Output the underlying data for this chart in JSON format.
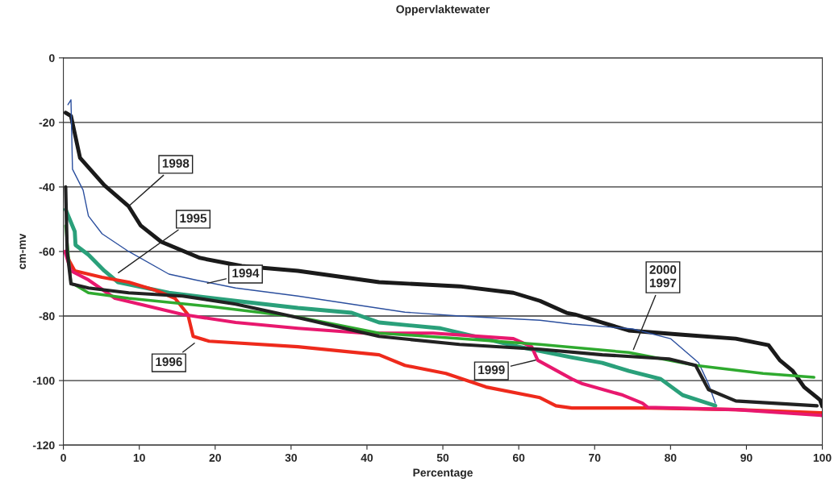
{
  "chart_data": {
    "type": "line",
    "title": "Oppervlaktewater",
    "xlabel": "Percentage",
    "ylabel": "cm-mv",
    "xlim": [
      0,
      100
    ],
    "xticks": [
      0,
      10,
      20,
      30,
      40,
      50,
      60,
      70,
      80,
      90,
      100
    ],
    "ylim": [
      -120,
      0
    ],
    "yticks": [
      -120,
      -100,
      -80,
      -60,
      -40,
      -20,
      0
    ],
    "grid": "y",
    "marker": "none",
    "line_style": "solid",
    "series": [
      {
        "color": "#1a1a1a",
        "x": [
          0.3,
          1,
          2.2,
          5.4,
          8.6,
          10.2,
          12.9,
          18,
          23.5,
          30.9,
          41.6,
          52.2,
          59.3,
          62.8,
          66.3,
          67.4,
          74.5,
          81.6,
          88.6,
          92.9,
          94.4,
          96.1,
          97.6,
          99.7,
          100
        ],
        "values": [
          -17,
          -18,
          -31,
          -39.5,
          -46,
          -52,
          -57,
          -62,
          -64.5,
          -66,
          -69.5,
          -70.8,
          -72.8,
          -75.3,
          -79,
          -79.5,
          -84.5,
          -85.8,
          -87,
          -89,
          -93.7,
          -97,
          -102,
          -106,
          -108
        ]
      },
      {
        "color": "#2b4f9e",
        "x": [
          0.6,
          1,
          1.2,
          2.6,
          3.3,
          5.1,
          8.6,
          13.9,
          17.4,
          22.7,
          30.9,
          45,
          52.2,
          62.8,
          67,
          75,
          80,
          83.7,
          85,
          85.9
        ],
        "values": [
          -14.5,
          -13,
          -34.5,
          -41,
          -49,
          -54.5,
          -60,
          -67,
          -68.8,
          -71.3,
          -73.8,
          -78.8,
          -80,
          -81.3,
          -82.5,
          -84,
          -87,
          -94.5,
          -101,
          -107
        ]
      },
      {
        "color": "#2aa07a",
        "x": [
          0.3,
          1.5,
          1.6,
          3.3,
          5.4,
          7.2,
          13.9,
          22.7,
          30.9,
          38,
          41.6,
          49.7,
          60,
          67,
          71,
          74.5,
          78.7,
          81.6,
          85.9
        ],
        "values": [
          -47,
          -53.8,
          -58,
          -61,
          -66,
          -69.5,
          -72.8,
          -75.3,
          -77.5,
          -79,
          -82,
          -83.8,
          -89.5,
          -92.8,
          -94.5,
          -97,
          -99.5,
          -104.5,
          -107.8
        ]
      },
      {
        "color": "#ee2a1c",
        "x": [
          0.3,
          0.8,
          1.5,
          5.1,
          8.6,
          12.1,
          14.7,
          16.4,
          17.1,
          19.2,
          30.9,
          41.6,
          45,
          50.4,
          55.7,
          62.8,
          64.9,
          67,
          77,
          88.6,
          100
        ],
        "values": [
          -60,
          -63,
          -66,
          -68,
          -69.5,
          -72,
          -74.5,
          -79.5,
          -86.3,
          -87.8,
          -89.5,
          -92,
          -95.3,
          -97.8,
          -102,
          -105.3,
          -107.8,
          -108.5,
          -108.5,
          -109,
          -110
        ]
      },
      {
        "color": "#e8186e",
        "x": [
          0.2,
          1,
          3.3,
          6.8,
          15.7,
          22.7,
          30.9,
          39.7,
          48.7,
          59.3,
          61.7,
          62.5,
          67,
          68.4,
          73.7,
          76.3,
          77,
          88.6,
          100
        ],
        "values": [
          -60,
          -66,
          -68.8,
          -74.5,
          -79.5,
          -82,
          -83.8,
          -85.3,
          -85.3,
          -87,
          -89.5,
          -93.7,
          -99.5,
          -101,
          -104.5,
          -107,
          -108.3,
          -109,
          -110.8
        ]
      },
      {
        "color": "#2faa2f",
        "x": [
          0.3,
          1,
          1.5,
          3.3,
          8.6,
          19.2,
          30.9,
          41.6,
          52.2,
          62.8,
          74.5,
          83.3,
          92.2,
          98.9
        ],
        "values": [
          -52,
          -70,
          -70.3,
          -72.8,
          -74.5,
          -77,
          -80.3,
          -85.3,
          -87,
          -88.8,
          -91.3,
          -95.3,
          -97.8,
          -99
        ]
      },
      {
        "color": "#222222",
        "x": [
          0.3,
          0.5,
          1,
          3.3,
          8.6,
          15.7,
          22.7,
          30.9,
          41.6,
          52.2,
          62.8,
          71,
          79.8,
          83.3,
          85,
          88.6,
          99.3
        ],
        "values": [
          -40,
          -60,
          -70,
          -71.3,
          -72.8,
          -73.8,
          -76.3,
          -80.5,
          -86.3,
          -88.8,
          -90.3,
          -92,
          -93.3,
          -95.3,
          -102.8,
          -106.3,
          -107.8
        ]
      }
    ],
    "annotations": [
      {
        "text": "1998",
        "x": 8.6,
        "y": -46
      },
      {
        "text": "1995",
        "x": 7,
        "y": -67
      },
      {
        "text": "1994",
        "x": 18.7,
        "y": -70
      },
      {
        "text": "1996",
        "x": 17.5,
        "y": -88
      },
      {
        "text": "1999",
        "x": 62.5,
        "y": -93.5
      },
      {
        "text": "2000\n1997",
        "x": 75,
        "y": -91
      }
    ]
  }
}
